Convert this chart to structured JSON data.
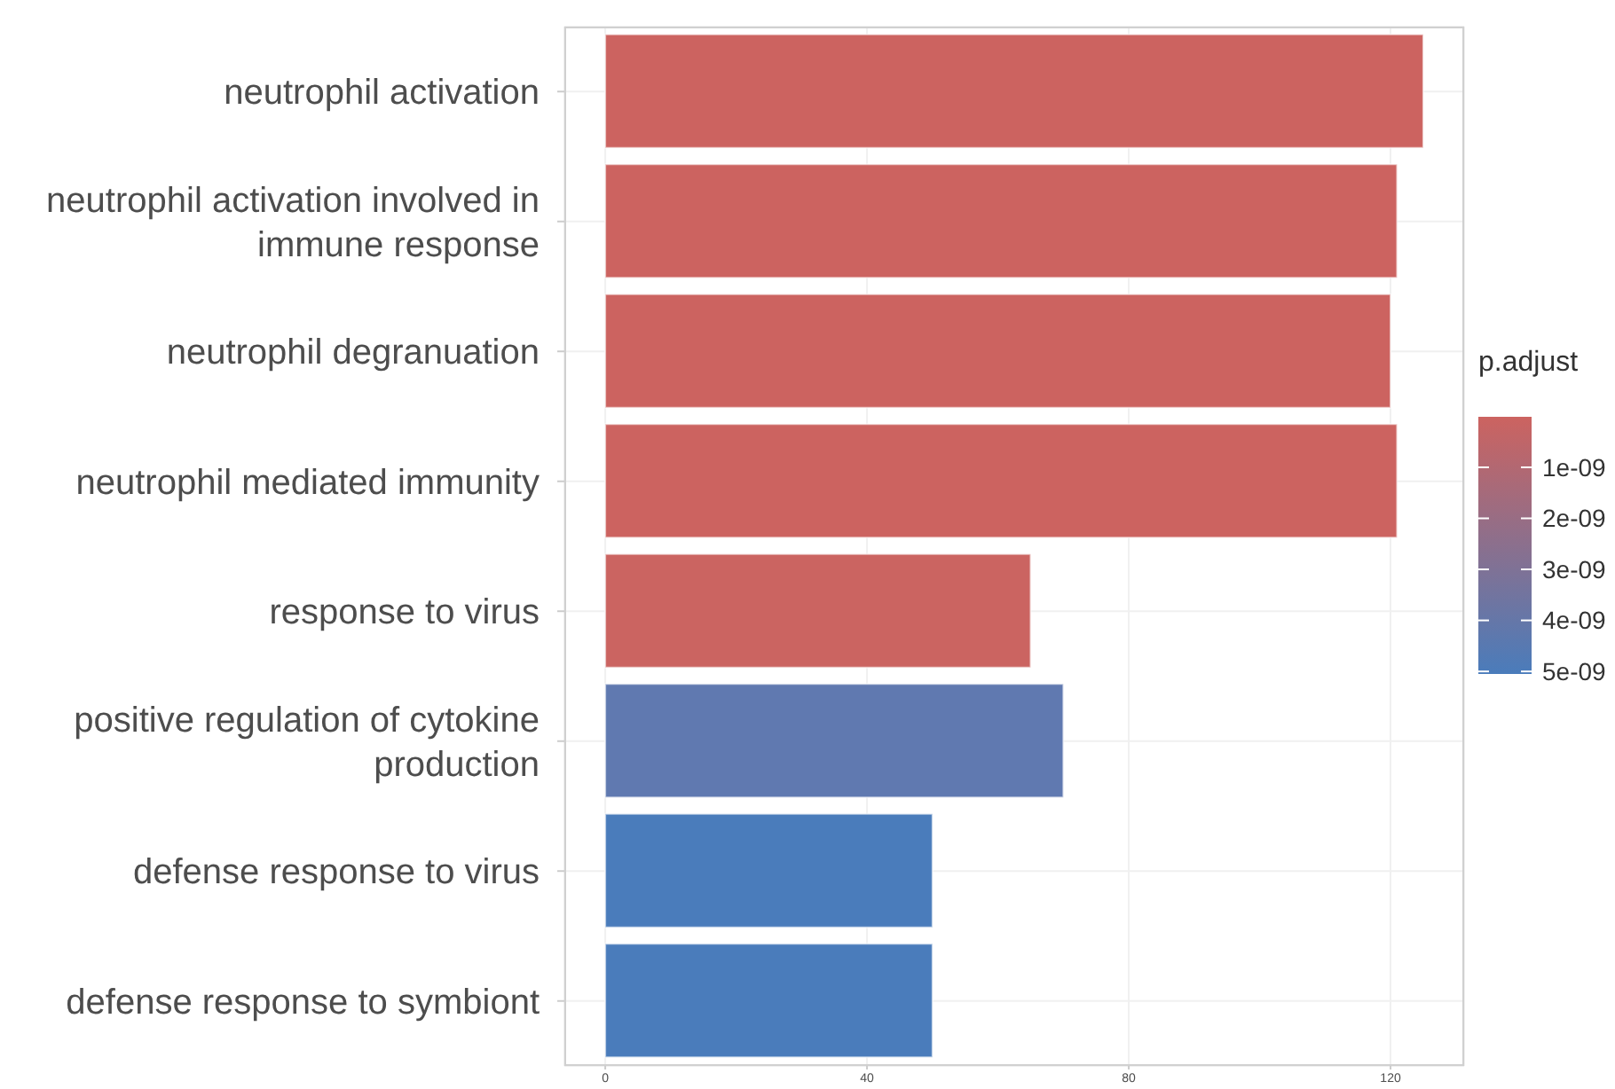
{
  "chart_data": {
    "type": "bar",
    "orientation": "horizontal",
    "categories": [
      "neutrophil activation",
      "neutrophil activation involved in immune response",
      "neutrophil degranuation",
      "neutrophil mediated immunity",
      "response to virus",
      "positive regulation of cytokine production",
      "defense response to virus",
      "defense response to symbiont"
    ],
    "values": [
      125,
      121,
      120,
      121,
      65,
      70,
      50,
      50
    ],
    "colors": [
      "#cc6360",
      "#cc6360",
      "#cc6360",
      "#cc6360",
      "#cb6461",
      "#6079b0",
      "#4a7cbb",
      "#4a7cbb"
    ],
    "xlim": [
      -6.25,
      131.25
    ],
    "xticks": [
      0,
      40,
      80,
      120
    ],
    "grid": true,
    "clabel": "p.adjust",
    "clim": [
      1e-11,
      5.05e-09
    ],
    "cticks": [
      {
        "value": 1e-09,
        "label": "1e-09"
      },
      {
        "value": 2e-09,
        "label": "2e-09"
      },
      {
        "value": 3e-09,
        "label": "3e-09"
      },
      {
        "value": 4e-09,
        "label": "4e-09"
      },
      {
        "value": 5e-09,
        "label": "5e-09"
      }
    ]
  }
}
